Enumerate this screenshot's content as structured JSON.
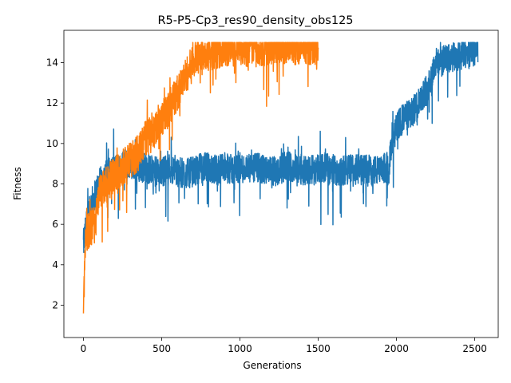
{
  "chart_data": {
    "type": "line",
    "title": "R5-P5-Cp3_res90_density_obs125",
    "xlabel": "Generations",
    "ylabel": "Fitness",
    "xlim": [
      -125,
      2650
    ],
    "ylim": [
      0.4,
      15.6
    ],
    "xticks": [
      0,
      500,
      1000,
      1500,
      2000,
      2500
    ],
    "yticks": [
      2,
      4,
      6,
      8,
      10,
      12,
      14
    ],
    "grid": false,
    "legend": "none",
    "series": [
      {
        "color": "#1f77b4",
        "x": [
          0,
          20,
          50,
          100,
          150,
          200,
          250,
          300,
          350,
          400,
          450,
          500,
          550,
          600,
          650,
          700,
          750,
          800,
          850,
          900,
          950,
          1000,
          1050,
          1100,
          1150,
          1200,
          1250,
          1300,
          1350,
          1400,
          1450,
          1500,
          1550,
          1600,
          1650,
          1700,
          1750,
          1800,
          1850,
          1900,
          1950,
          2000,
          2050,
          2100,
          2150,
          2200,
          2250,
          2300,
          2350,
          2400,
          2450,
          2500,
          2520
        ],
        "y": [
          5.0,
          6.0,
          7.0,
          8.0,
          8.5,
          8.7,
          9.0,
          9.0,
          8.8,
          8.8,
          8.6,
          8.6,
          8.8,
          8.6,
          8.5,
          8.6,
          8.8,
          8.8,
          8.7,
          8.8,
          8.7,
          8.8,
          8.7,
          8.8,
          8.7,
          8.6,
          8.7,
          8.9,
          8.8,
          8.7,
          8.7,
          8.8,
          8.8,
          8.7,
          8.6,
          8.8,
          8.7,
          8.7,
          8.7,
          8.6,
          9.0,
          10.8,
          11.3,
          11.5,
          12.2,
          12.8,
          14.0,
          14.1,
          14.2,
          14.3,
          14.5,
          14.6,
          14.7
        ],
        "noise": 0.75
      },
      {
        "color": "#ff7f0e",
        "x": [
          0,
          5,
          10,
          20,
          40,
          60,
          80,
          100,
          150,
          200,
          250,
          300,
          350,
          400,
          450,
          500,
          550,
          600,
          650,
          700,
          750,
          800,
          850,
          900,
          950,
          1000,
          1050,
          1100,
          1150,
          1200,
          1250,
          1300,
          1350,
          1400,
          1450,
          1500
        ],
        "y": [
          1.5,
          3.0,
          5.0,
          5.5,
          5.8,
          6.0,
          6.3,
          7.5,
          8.0,
          8.5,
          8.8,
          9.2,
          9.5,
          10.3,
          10.8,
          11.2,
          11.8,
          12.5,
          13.3,
          14.0,
          14.5,
          14.5,
          14.6,
          14.7,
          14.7,
          14.8,
          14.7,
          14.8,
          14.7,
          14.8,
          14.8,
          14.8,
          14.8,
          14.8,
          14.8,
          14.8
        ],
        "noise": 0.9
      }
    ]
  }
}
